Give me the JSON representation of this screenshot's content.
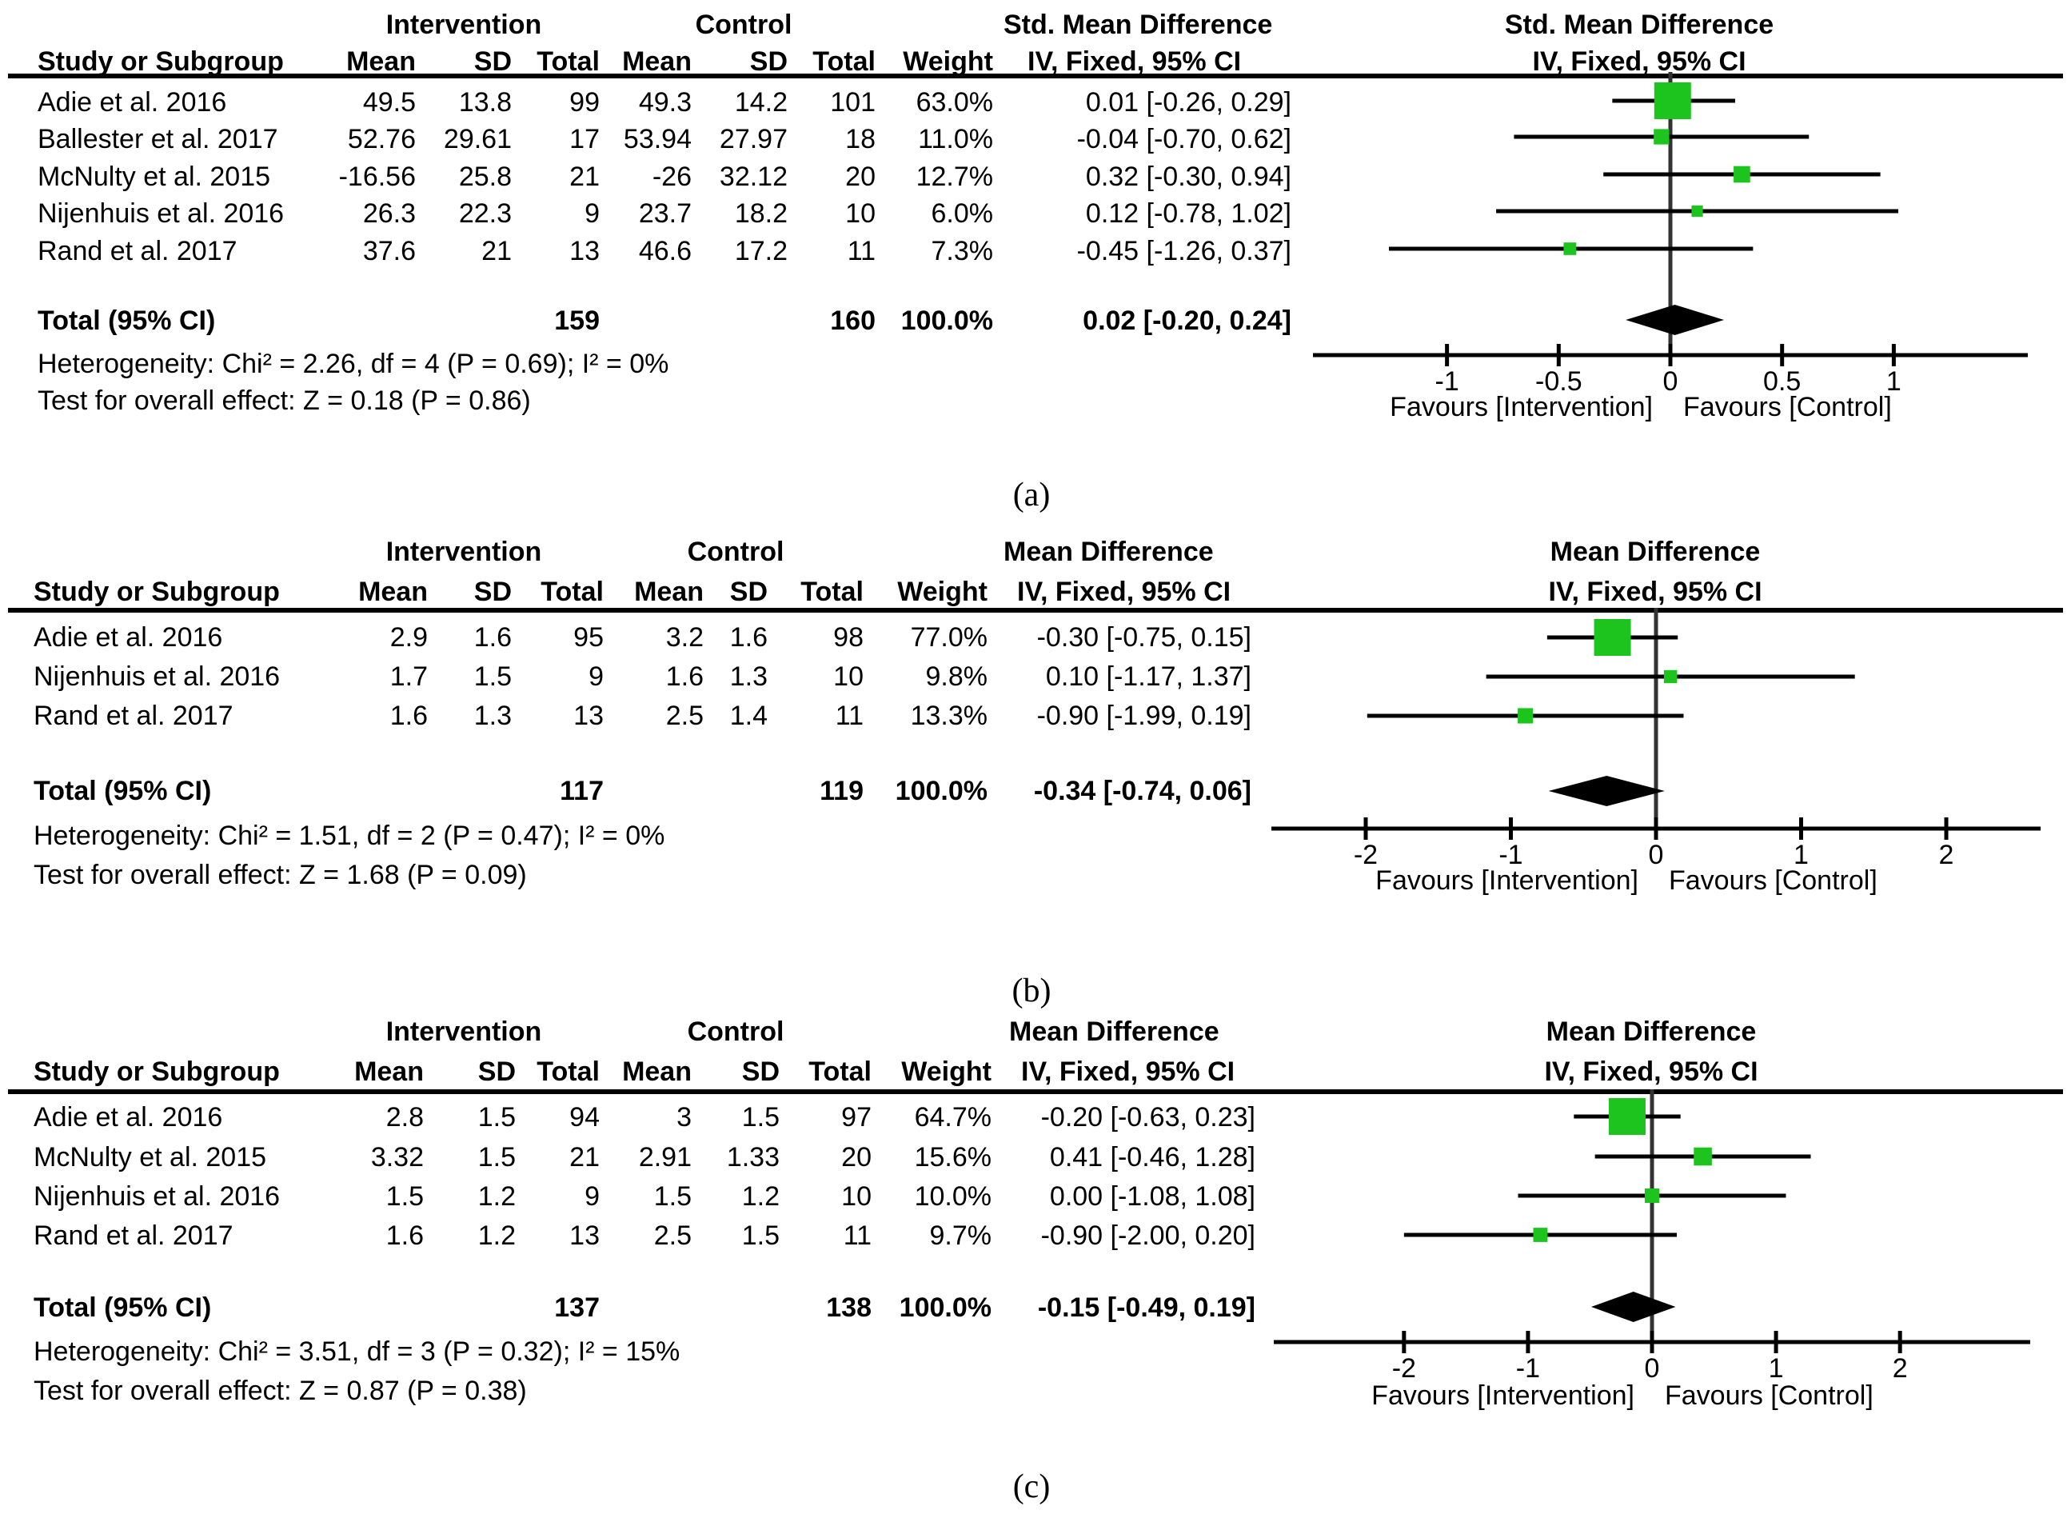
{
  "colors": {
    "marker": "#1ec41e",
    "line": "#000000",
    "zero_line": "#333333"
  },
  "chart_data": [
    {
      "type": "forest",
      "label": "(a)",
      "header": {
        "intervention": "Intervention",
        "control": "Control",
        "effect_measure": "Std. Mean Difference",
        "effect_method": "IV, Fixed, 95% CI",
        "plot_title": "Std. Mean Difference",
        "plot_method": "IV, Fixed, 95% CI",
        "col_study": "Study or Subgroup",
        "col_mean": "Mean",
        "col_sd": "SD",
        "col_total": "Total",
        "col_weight": "Weight"
      },
      "studies": [
        {
          "name": "Adie et al. 2016",
          "int_mean": "49.5",
          "int_sd": "13.8",
          "int_total": "99",
          "ctl_mean": "49.3",
          "ctl_sd": "14.2",
          "ctl_total": "101",
          "weight": "63.0%",
          "ci_text": "0.01 [-0.26, 0.29]",
          "est": 0.01,
          "lo": -0.26,
          "hi": 0.29,
          "w": 63.0
        },
        {
          "name": "Ballester et al. 2017",
          "int_mean": "52.76",
          "int_sd": "29.61",
          "int_total": "17",
          "ctl_mean": "53.94",
          "ctl_sd": "27.97",
          "ctl_total": "18",
          "weight": "11.0%",
          "ci_text": "-0.04 [-0.70, 0.62]",
          "est": -0.04,
          "lo": -0.7,
          "hi": 0.62,
          "w": 11.0
        },
        {
          "name": "McNulty et al. 2015",
          "int_mean": "-16.56",
          "int_sd": "25.8",
          "int_total": "21",
          "ctl_mean": "-26",
          "ctl_sd": "32.12",
          "ctl_total": "20",
          "weight": "12.7%",
          "ci_text": "0.32 [-0.30, 0.94]",
          "est": 0.32,
          "lo": -0.3,
          "hi": 0.94,
          "w": 12.7
        },
        {
          "name": "Nijenhuis et al. 2016",
          "int_mean": "26.3",
          "int_sd": "22.3",
          "int_total": "9",
          "ctl_mean": "23.7",
          "ctl_sd": "18.2",
          "ctl_total": "10",
          "weight": "6.0%",
          "ci_text": "0.12 [-0.78, 1.02]",
          "est": 0.12,
          "lo": -0.78,
          "hi": 1.02,
          "w": 6.0
        },
        {
          "name": "Rand et al. 2017",
          "int_mean": "37.6",
          "int_sd": "21",
          "int_total": "13",
          "ctl_mean": "46.6",
          "ctl_sd": "17.2",
          "ctl_total": "11",
          "weight": "7.3%",
          "ci_text": "-0.45 [-1.26, 0.37]",
          "est": -0.45,
          "lo": -1.26,
          "hi": 0.37,
          "w": 7.3
        }
      ],
      "total": {
        "name": "Total (95% CI)",
        "int_total": "159",
        "ctl_total": "160",
        "weight": "100.0%",
        "ci_text": "0.02 [-0.20, 0.24]",
        "est": 0.02,
        "lo": -0.2,
        "hi": 0.24
      },
      "heterogeneity": "Heterogeneity: Chi² = 2.26, df = 4 (P = 0.69); I² = 0%",
      "overall_effect": "Test for overall effect: Z = 0.18 (P = 0.86)",
      "axis": {
        "xlim": [
          -1.6,
          1.6
        ],
        "ticks": [
          -1,
          -0.5,
          0,
          0.5,
          1
        ],
        "tick_labels": [
          "-1",
          "-0.5",
          "0",
          "0.5",
          "1"
        ]
      },
      "favours_left": "Favours [Intervention]",
      "favours_right": "Favours [Control]"
    },
    {
      "type": "forest",
      "label": "(b)",
      "header": {
        "intervention": "Intervention",
        "control": "Control",
        "effect_measure": "Mean Difference",
        "effect_method": "IV, Fixed, 95% CI",
        "plot_title": "Mean Difference",
        "plot_method": "IV, Fixed, 95% CI",
        "col_study": "Study or Subgroup",
        "col_mean": "Mean",
        "col_sd": "SD",
        "col_total": "Total",
        "col_weight": "Weight"
      },
      "studies": [
        {
          "name": "Adie et al. 2016",
          "int_mean": "2.9",
          "int_sd": "1.6",
          "int_total": "95",
          "ctl_mean": "3.2",
          "ctl_sd": "1.6",
          "ctl_total": "98",
          "weight": "77.0%",
          "ci_text": "-0.30 [-0.75, 0.15]",
          "est": -0.3,
          "lo": -0.75,
          "hi": 0.15,
          "w": 77.0
        },
        {
          "name": "Nijenhuis et al. 2016",
          "int_mean": "1.7",
          "int_sd": "1.5",
          "int_total": "9",
          "ctl_mean": "1.6",
          "ctl_sd": "1.3",
          "ctl_total": "10",
          "weight": "9.8%",
          "ci_text": "0.10 [-1.17, 1.37]",
          "est": 0.1,
          "lo": -1.17,
          "hi": 1.37,
          "w": 9.8
        },
        {
          "name": "Rand et al. 2017",
          "int_mean": "1.6",
          "int_sd": "1.3",
          "int_total": "13",
          "ctl_mean": "2.5",
          "ctl_sd": "1.4",
          "ctl_total": "11",
          "weight": "13.3%",
          "ci_text": "-0.90 [-1.99, 0.19]",
          "est": -0.9,
          "lo": -1.99,
          "hi": 0.19,
          "w": 13.3
        }
      ],
      "total": {
        "name": "Total (95% CI)",
        "int_total": "117",
        "ctl_total": "119",
        "weight": "100.0%",
        "ci_text": "-0.34 [-0.74, 0.06]",
        "est": -0.34,
        "lo": -0.74,
        "hi": 0.06
      },
      "heterogeneity": "Heterogeneity: Chi² = 1.51, df = 2 (P = 0.47); I² = 0%",
      "overall_effect": "Test for overall effect: Z = 1.68 (P = 0.09)",
      "axis": {
        "xlim": [
          -2.65,
          2.65
        ],
        "ticks": [
          -2,
          -1,
          0,
          1,
          2
        ],
        "tick_labels": [
          "-2",
          "-1",
          "0",
          "1",
          "2"
        ]
      },
      "favours_left": "Favours [Intervention]",
      "favours_right": "Favours [Control]"
    },
    {
      "type": "forest",
      "label": "(c)",
      "header": {
        "intervention": "Intervention",
        "control": "Control",
        "effect_measure": "Mean Difference",
        "effect_method": "IV, Fixed, 95% CI",
        "plot_title": "Mean Difference",
        "plot_method": "IV, Fixed, 95% CI",
        "col_study": "Study or Subgroup",
        "col_mean": "Mean",
        "col_sd": "SD",
        "col_total": "Total",
        "col_weight": "Weight"
      },
      "studies": [
        {
          "name": "Adie et al. 2016",
          "int_mean": "2.8",
          "int_sd": "1.5",
          "int_total": "94",
          "ctl_mean": "3",
          "ctl_sd": "1.5",
          "ctl_total": "97",
          "weight": "64.7%",
          "ci_text": "-0.20 [-0.63, 0.23]",
          "est": -0.2,
          "lo": -0.63,
          "hi": 0.23,
          "w": 64.7
        },
        {
          "name": "McNulty et al. 2015",
          "int_mean": "3.32",
          "int_sd": "1.5",
          "int_total": "21",
          "ctl_mean": "2.91",
          "ctl_sd": "1.33",
          "ctl_total": "20",
          "weight": "15.6%",
          "ci_text": "0.41 [-0.46, 1.28]",
          "est": 0.41,
          "lo": -0.46,
          "hi": 1.28,
          "w": 15.6
        },
        {
          "name": "Nijenhuis et al. 2016",
          "int_mean": "1.5",
          "int_sd": "1.2",
          "int_total": "9",
          "ctl_mean": "1.5",
          "ctl_sd": "1.2",
          "ctl_total": "10",
          "weight": "10.0%",
          "ci_text": "0.00 [-1.08, 1.08]",
          "est": 0.0,
          "lo": -1.08,
          "hi": 1.08,
          "w": 10.0
        },
        {
          "name": "Rand et al. 2017",
          "int_mean": "1.6",
          "int_sd": "1.2",
          "int_total": "13",
          "ctl_mean": "2.5",
          "ctl_sd": "1.5",
          "ctl_total": "11",
          "weight": "9.7%",
          "ci_text": "-0.90 [-2.00, 0.20]",
          "est": -0.9,
          "lo": -2.0,
          "hi": 0.2,
          "w": 9.7
        }
      ],
      "total": {
        "name": "Total (95% CI)",
        "int_total": "137",
        "ctl_total": "138",
        "weight": "100.0%",
        "ci_text": "-0.15 [-0.49, 0.19]",
        "est": -0.15,
        "lo": -0.49,
        "hi": 0.19
      },
      "heterogeneity": "Heterogeneity: Chi² = 3.51, df = 3 (P = 0.32); I² = 15%",
      "overall_effect": "Test for overall effect: Z = 0.87 (P = 0.38)",
      "axis": {
        "xlim": [
          -3.05,
          3.05
        ],
        "ticks": [
          -2,
          -1,
          0,
          1,
          2
        ],
        "tick_labels": [
          "-2",
          "-1",
          "0",
          "1",
          "2"
        ]
      },
      "favours_left": "Favours [Intervention]",
      "favours_right": "Favours [Control]"
    }
  ]
}
